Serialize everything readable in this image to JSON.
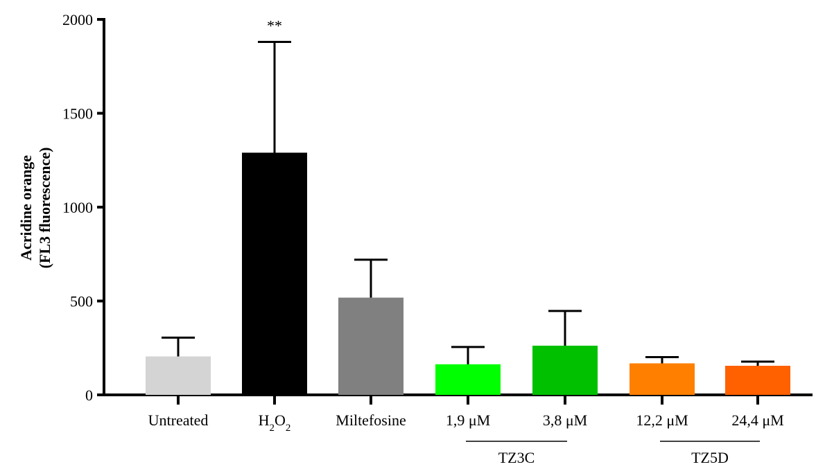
{
  "chart_data": {
    "type": "bar",
    "ylabel_lines": [
      "Acridine orange",
      "(FL3 fluorescence)"
    ],
    "ylim": [
      0,
      2000
    ],
    "yticks": [
      "0",
      "500",
      "1000",
      "1500",
      "2000"
    ],
    "categories": [
      {
        "label": "Untreated",
        "value": 205,
        "error": 100,
        "color": "#d4d4d4"
      },
      {
        "label": "H2O2",
        "label_html": [
          "H",
          "2",
          "O",
          "2"
        ],
        "value": 1290,
        "error": 590,
        "color": "#000000",
        "annotation": "**"
      },
      {
        "label": "Miltefosine",
        "value": 518,
        "error": 202,
        "color": "#808080"
      },
      {
        "label": "1,9 μM",
        "value": 163,
        "error": 92,
        "color": "#00ff00"
      },
      {
        "label": "3,8 μM",
        "value": 262,
        "error": 185,
        "color": "#00c000"
      },
      {
        "label": "12,2 μM",
        "value": 168,
        "error": 33,
        "color": "#ff8000"
      },
      {
        "label": "24,4 μM",
        "value": 155,
        "error": 22,
        "color": "#ff6000"
      }
    ],
    "groups": [
      {
        "label": "TZ3C",
        "from": 3,
        "to": 4
      },
      {
        "label": "TZ5D",
        "from": 5,
        "to": 6
      }
    ]
  }
}
